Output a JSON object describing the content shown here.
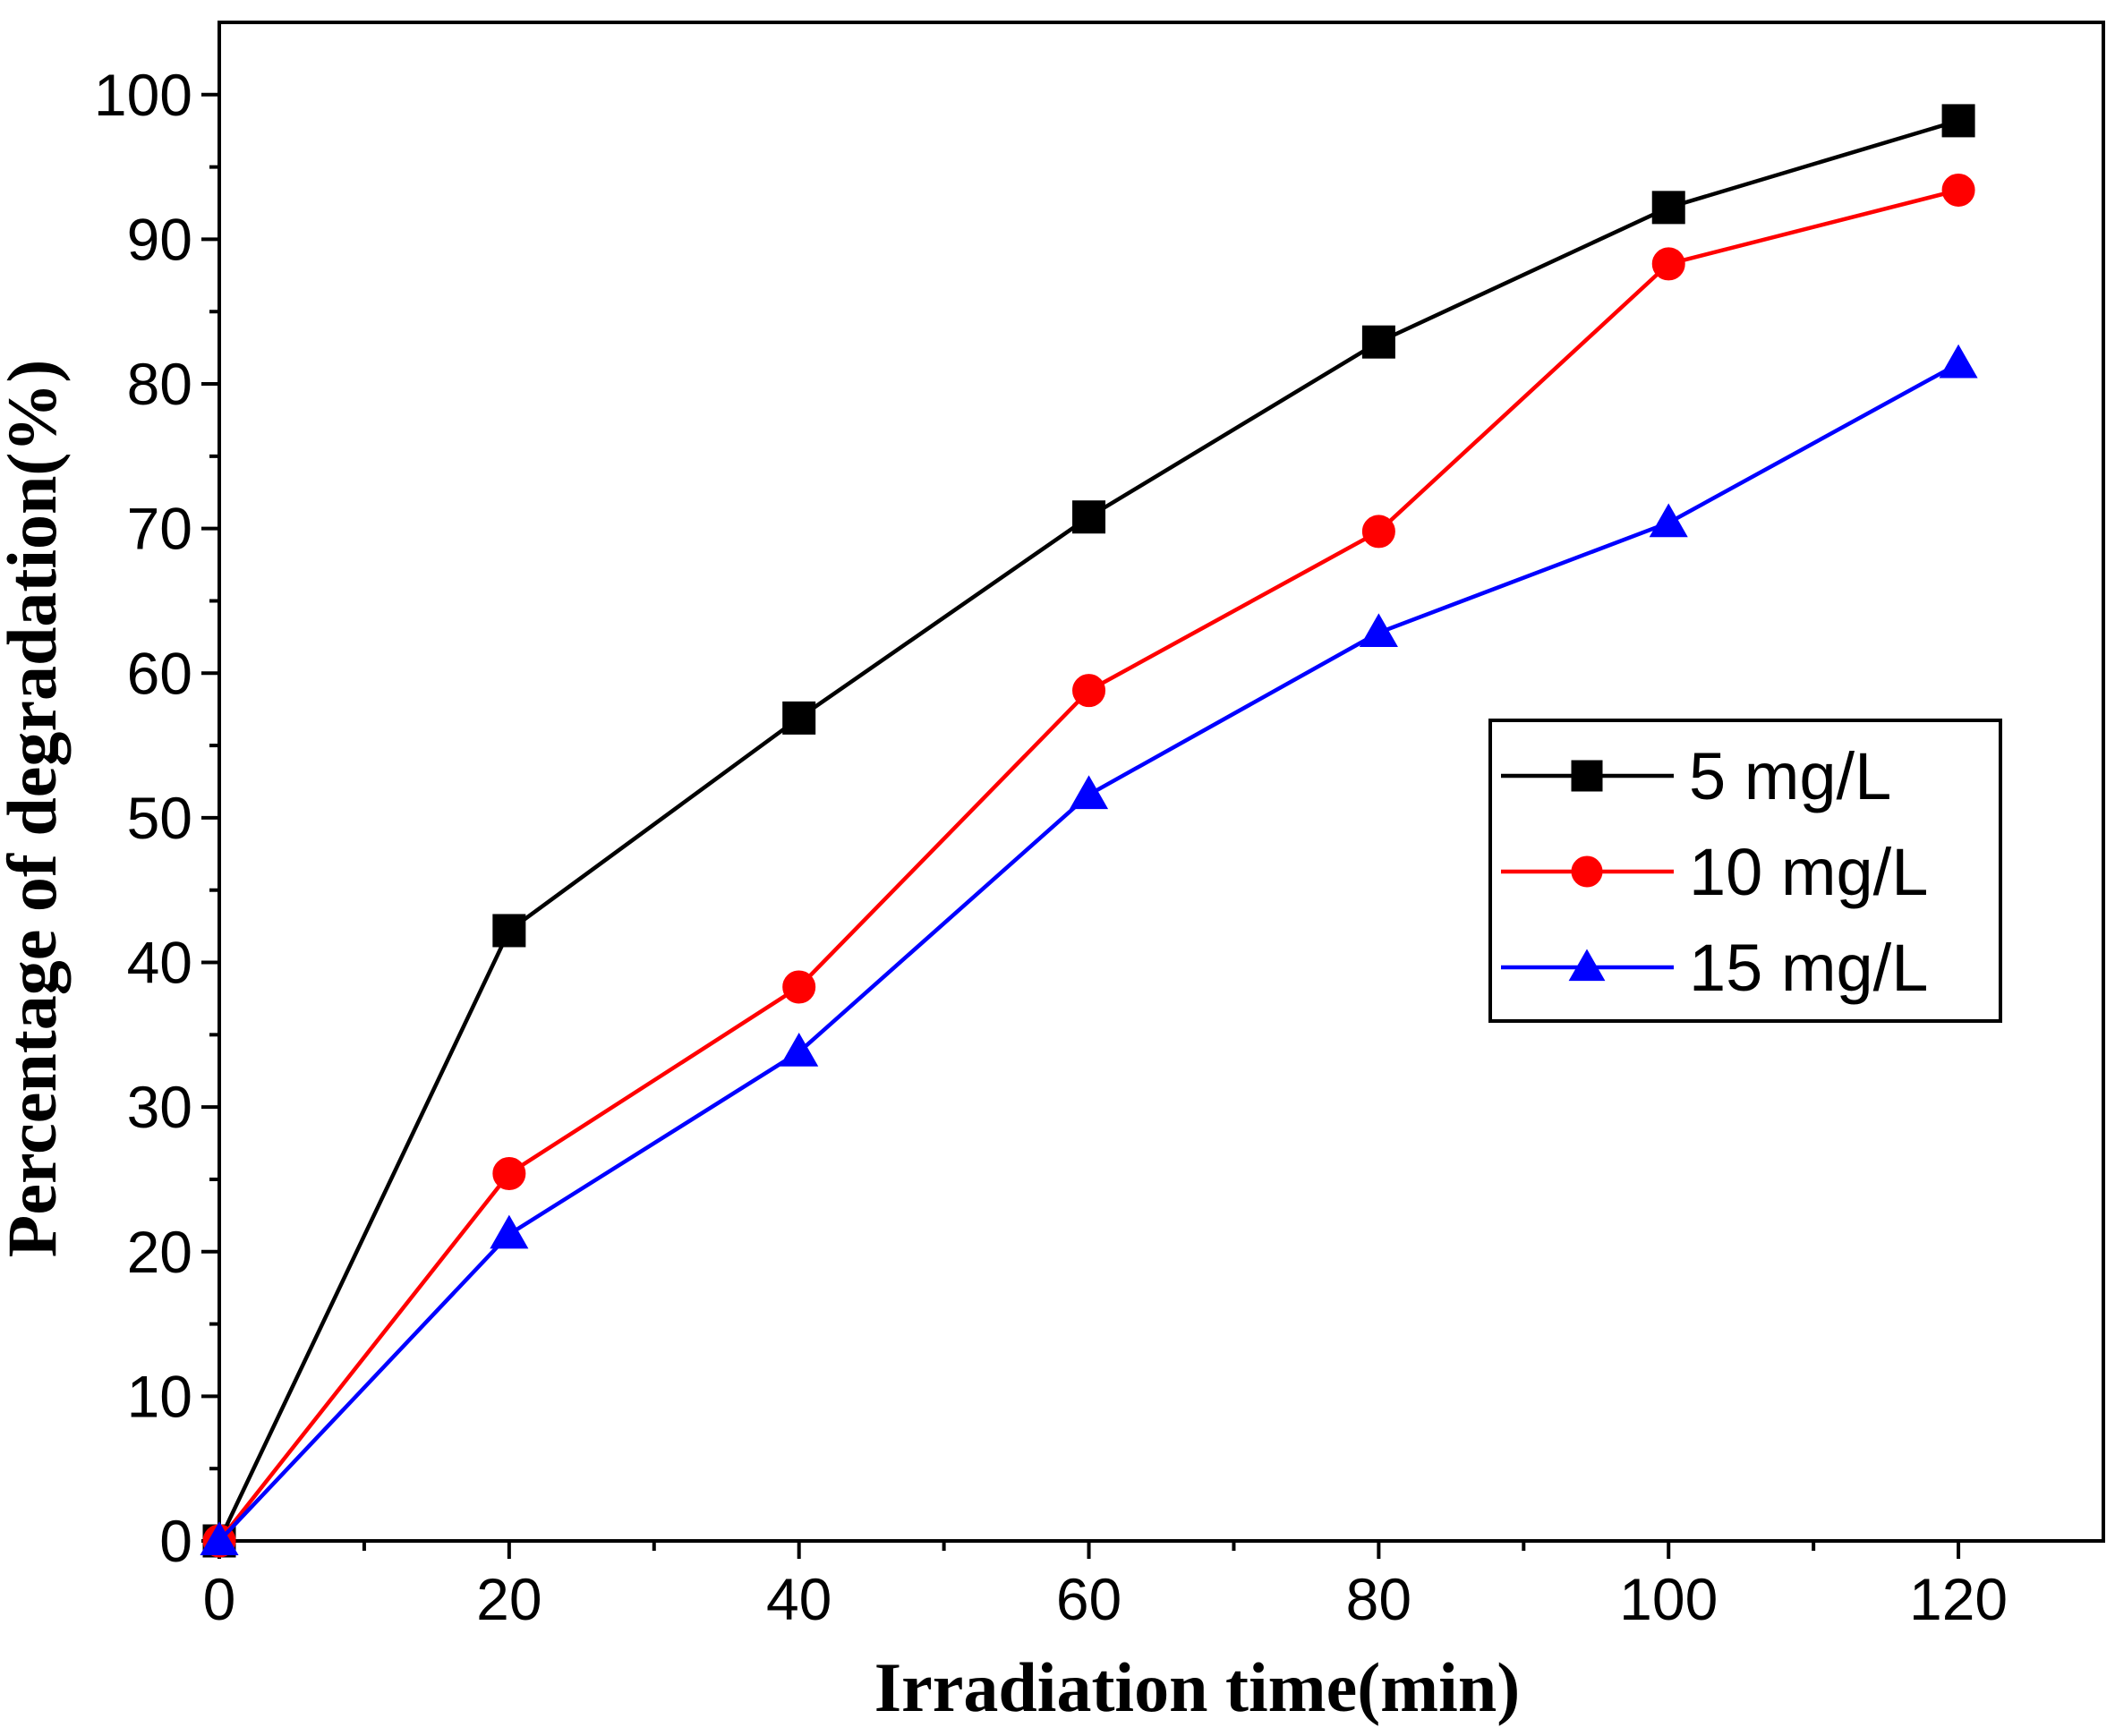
{
  "chart_data": {
    "type": "line",
    "title": "",
    "xlabel": "Irradiation time(min)",
    "ylabel": "Percentage of degradation(%)",
    "xlim": [
      0,
      130
    ],
    "ylim": [
      0,
      105
    ],
    "x_ticks": [
      0,
      20,
      40,
      60,
      80,
      100,
      120
    ],
    "x_tick_labels": [
      "0",
      "20",
      "40",
      "60",
      "80",
      "100",
      "120"
    ],
    "y_ticks": [
      0,
      10,
      20,
      30,
      40,
      50,
      60,
      70,
      80,
      90,
      100
    ],
    "y_tick_labels": [
      "0",
      "10",
      "20",
      "30",
      "40",
      "50",
      "60",
      "70",
      "80",
      "90",
      "100"
    ],
    "grid": false,
    "legend_position": "center-right",
    "x": [
      0,
      20,
      40,
      60,
      80,
      100,
      120
    ],
    "series": [
      {
        "name": "5 mg/L",
        "color": "#000000",
        "marker": "square",
        "values": [
          0,
          42.2,
          56.9,
          70.8,
          82.9,
          92.2,
          98.2
        ]
      },
      {
        "name": "10 mg/L",
        "color": "#ff0000",
        "marker": "circle",
        "values": [
          0,
          25.4,
          38.3,
          58.8,
          69.8,
          88.3,
          93.4
        ]
      },
      {
        "name": "15 mg/L",
        "color": "#0000ff",
        "marker": "triangle",
        "values": [
          0,
          21.2,
          33.8,
          51.6,
          62.8,
          70.4,
          81.4
        ]
      }
    ]
  }
}
